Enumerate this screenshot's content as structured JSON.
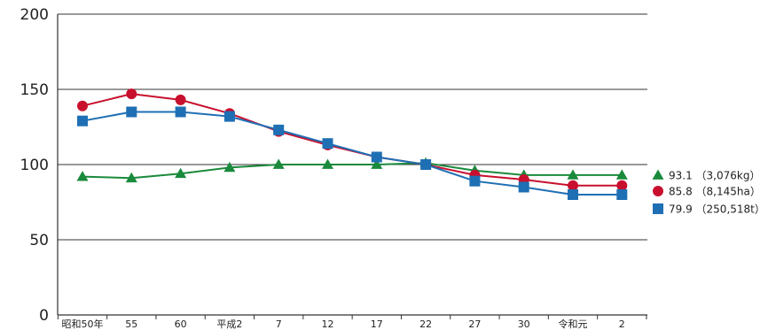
{
  "chart_data": {
    "type": "line",
    "title": "",
    "xlabel": "",
    "ylabel": "",
    "categories": [
      "昭和50年",
      "55",
      "60",
      "平成2",
      "7",
      "12",
      "17",
      "22",
      "27",
      "30",
      "令和元",
      "2"
    ],
    "ylim": [
      0,
      200
    ],
    "yticks": [
      0,
      50,
      100,
      150,
      200
    ],
    "grid": true,
    "series": [
      {
        "name": "93.1（3,076kg）",
        "value_label": "93.1",
        "unit_label": "（3,076kg）",
        "marker": "triangle",
        "color": "#1a8a3c",
        "values": [
          92,
          91,
          94,
          98,
          100,
          100,
          100,
          101,
          96,
          93,
          93,
          93
        ]
      },
      {
        "name": "85.8（8,145ha）",
        "value_label": "85.8",
        "unit_label": "（8,145ha）",
        "marker": "circle",
        "color": "#c8102e",
        "values": [
          139,
          147,
          143,
          134,
          122,
          113,
          105,
          100,
          93,
          90,
          86,
          86
        ]
      },
      {
        "name": "79.9（250,518t）",
        "value_label": "79.9",
        "unit_label": "（250,518t）",
        "marker": "square",
        "color": "#1f6fb4",
        "values": [
          129,
          135,
          135,
          132,
          123,
          114,
          105,
          100,
          89,
          85,
          80,
          80
        ]
      }
    ],
    "legend": "right"
  }
}
